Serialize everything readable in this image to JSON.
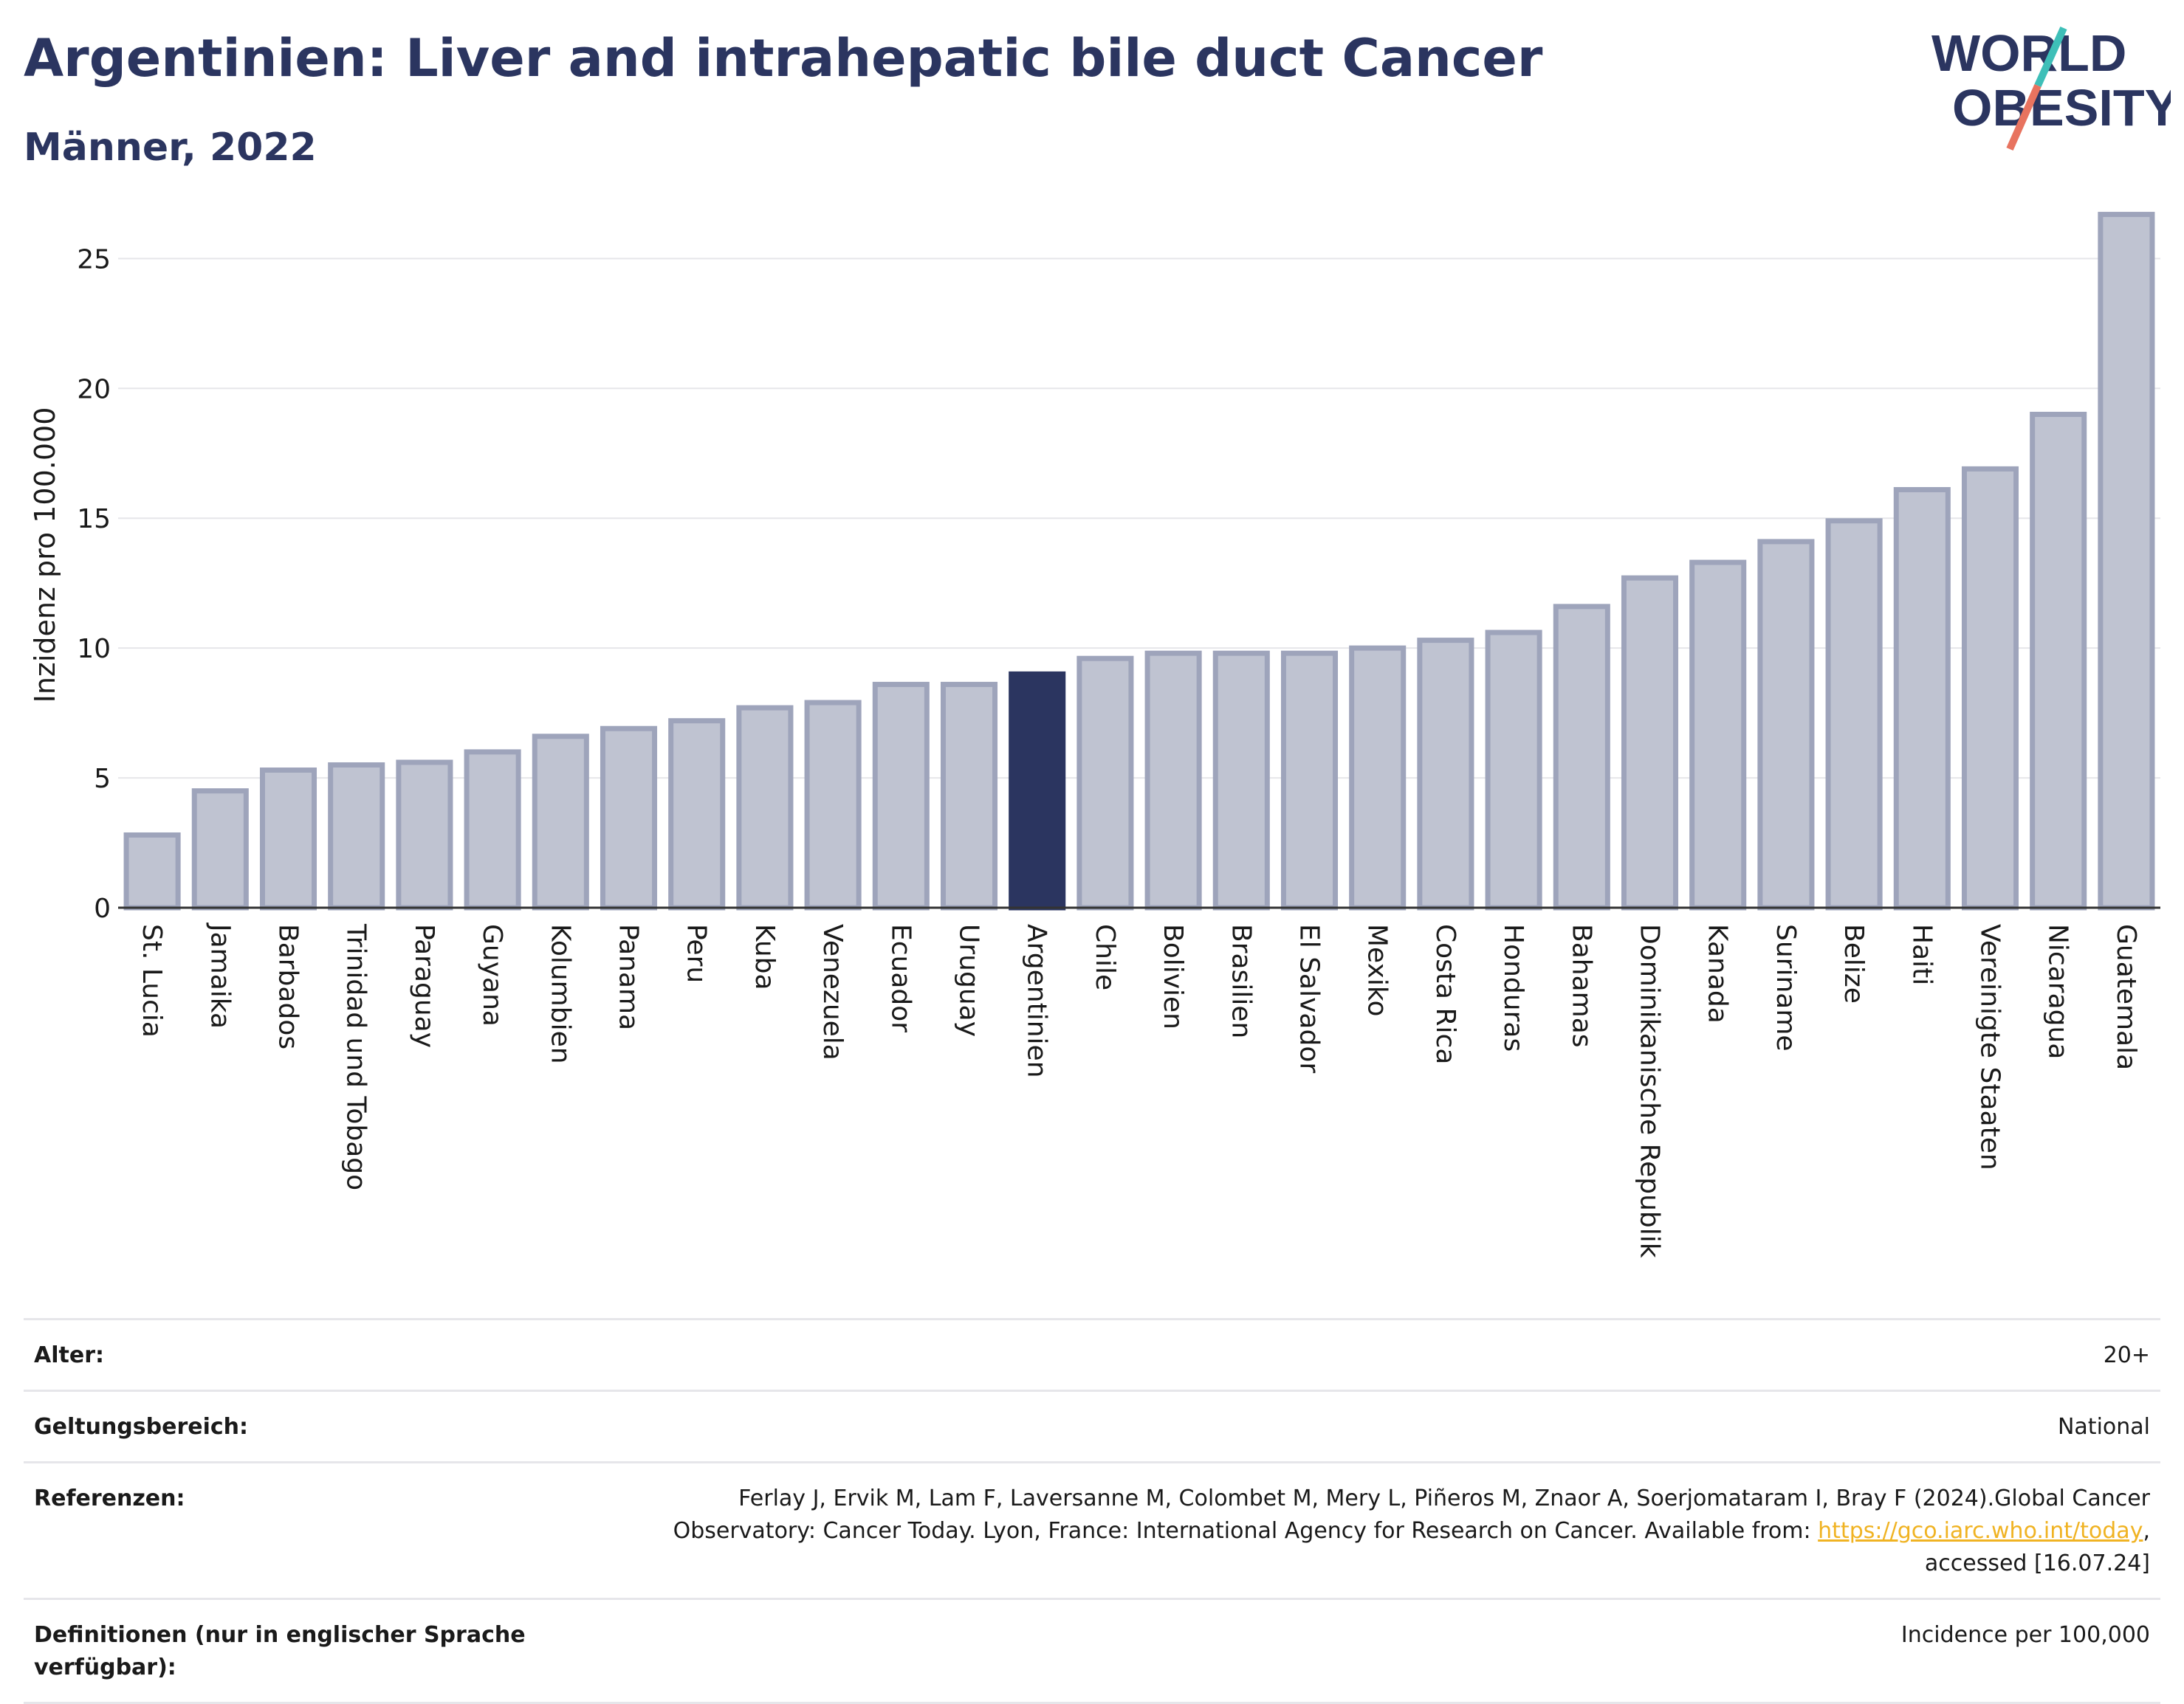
{
  "header": {
    "title": "Argentinien: Liver and intrahepatic bile duct Cancer",
    "subtitle": "Männer, 2022",
    "logo_line1": "WORLD",
    "logo_line2": "OBESITY"
  },
  "colors": {
    "bar": "#bfc3d1",
    "bar_stroke": "#9ea4bb",
    "highlight": "#2b3560",
    "title": "#2b3560",
    "grid": "#e6e6ea",
    "logo_teal": "#3ebfb8",
    "logo_red": "#e8735f",
    "link": "#f0b323"
  },
  "chart_data": {
    "type": "bar",
    "ylabel": "Inzidenz pro 100.000",
    "xlabel": "",
    "ylim": [
      0,
      27
    ],
    "yticks": [
      0,
      5,
      10,
      15,
      20,
      25
    ],
    "grid": true,
    "highlight": "Argentinien",
    "categories": [
      "St. Lucia",
      "Jamaika",
      "Barbados",
      "Trinidad und Tobago",
      "Paraguay",
      "Guyana",
      "Kolumbien",
      "Panama",
      "Peru",
      "Kuba",
      "Venezuela",
      "Ecuador",
      "Uruguay",
      "Argentinien",
      "Chile",
      "Bolivien",
      "Brasilien",
      "El Salvador",
      "Mexiko",
      "Costa Rica",
      "Honduras",
      "Bahamas",
      "Dominikanische Republik",
      "Kanada",
      "Suriname",
      "Belize",
      "Haiti",
      "Vereinigte Staaten",
      "Nicaragua",
      "Guatemala"
    ],
    "values": [
      2.8,
      4.5,
      5.3,
      5.5,
      5.6,
      6.0,
      6.6,
      6.9,
      7.2,
      7.7,
      7.9,
      8.6,
      8.6,
      9.0,
      9.6,
      9.8,
      9.8,
      9.8,
      10.0,
      10.3,
      10.6,
      11.6,
      12.7,
      13.3,
      14.1,
      14.9,
      16.1,
      16.9,
      19.0,
      26.7
    ]
  },
  "meta": {
    "rows": [
      {
        "label": "Alter:",
        "value": "20+"
      },
      {
        "label": "Geltungsbereich:",
        "value": "National"
      },
      {
        "label": "Referenzen:",
        "value_pre": "Ferlay J, Ervik M, Lam F, Laversanne M, Colombet M, Mery L, Piñeros M, Znaor A, Soerjomataram I, Bray F (2024).Global Cancer Observatory: Cancer Today. Lyon, France: International Agency for Research on Cancer. Available from: ",
        "link": "https://gco.iarc.who.int/today",
        "value_post": ", accessed [16.07.24]"
      },
      {
        "label": "Definitionen (nur in englischer Sprache verfügbar):",
        "value": "Incidence per 100,000"
      }
    ]
  }
}
